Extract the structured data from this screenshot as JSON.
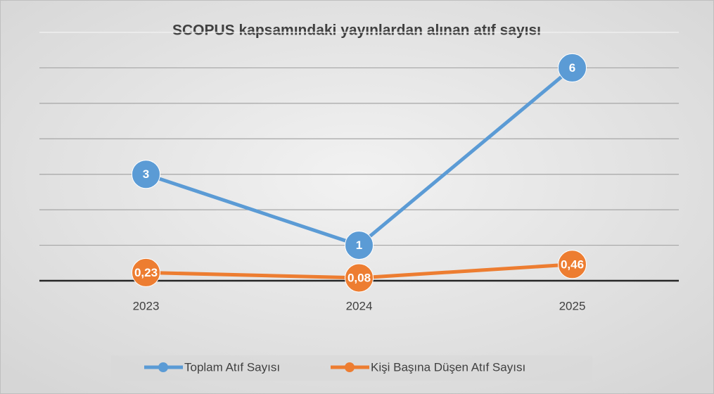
{
  "chart_data": {
    "type": "line",
    "title": "SCOPUS kapsamındaki yayınlardan alınan atıf sayısı",
    "categories": [
      "2023",
      "2024",
      "2025"
    ],
    "series": [
      {
        "name": "Toplam Atıf Sayısı",
        "color": "#5b9bd5",
        "values": [
          3,
          1,
          6
        ]
      },
      {
        "name": "Kişi Başına Düşen Atıf Sayısı",
        "color": "#ed7d31",
        "values": [
          0.23,
          0.08,
          0.46
        ],
        "value_labels": [
          "0,23",
          "0,08",
          "0,46"
        ]
      }
    ],
    "ylim": [
      0,
      7
    ],
    "yticks": [
      0,
      1,
      2,
      3,
      4,
      5,
      6,
      7
    ],
    "grid": true,
    "legend": "bottom"
  }
}
